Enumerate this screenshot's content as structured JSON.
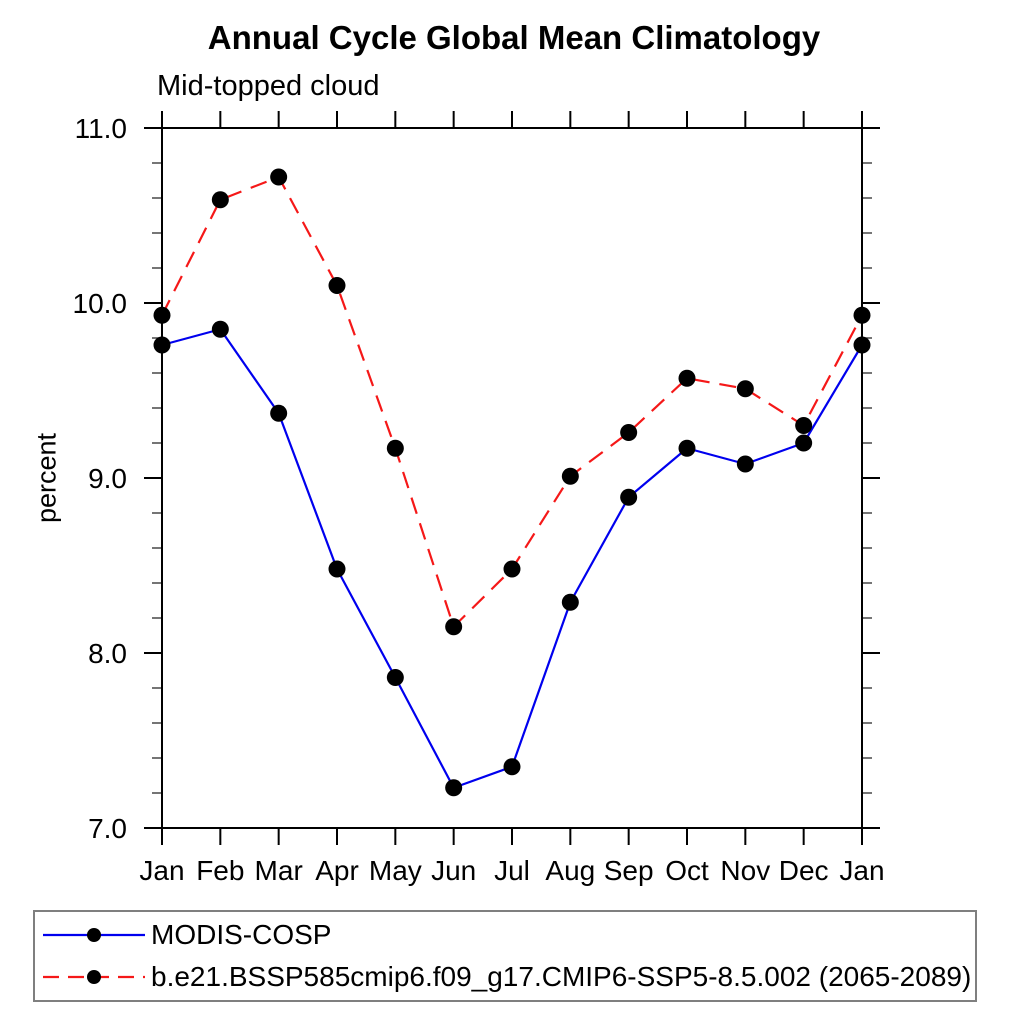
{
  "chart_data": {
    "type": "line",
    "title": "Annual Cycle Global Mean Climatology",
    "subtitle": "Mid-topped cloud",
    "xlabel": "",
    "ylabel": "percent",
    "categories": [
      "Jan",
      "Feb",
      "Mar",
      "Apr",
      "May",
      "Jun",
      "Jul",
      "Aug",
      "Sep",
      "Oct",
      "Nov",
      "Dec",
      "Jan"
    ],
    "ylim": [
      7.0,
      11.0
    ],
    "ytick_major_labels": [
      "7.0",
      "8.0",
      "9.0",
      "10.0",
      "11.0"
    ],
    "ytick_major_values": [
      7.0,
      8.0,
      9.0,
      10.0,
      11.0
    ],
    "ytick_minor_step": 0.2,
    "grid": false,
    "legend_position": "bottom-left",
    "marker_color": "#000000",
    "axis_color": "#000000",
    "series": [
      {
        "name": "MODIS-COSP",
        "color": "#0000ee",
        "line_style": "solid",
        "values": [
          9.76,
          9.85,
          9.37,
          8.48,
          7.86,
          7.23,
          7.35,
          8.29,
          8.89,
          9.17,
          9.08,
          9.2,
          9.76
        ]
      },
      {
        "name": "b.e21.BSSP585cmip6.f09_g17.CMIP6-SSP5-8.5.002 (2065-2089)",
        "color": "#f51818",
        "line_style": "dashed",
        "values": [
          9.93,
          10.59,
          10.72,
          10.1,
          9.17,
          8.15,
          8.48,
          9.01,
          9.26,
          9.57,
          9.51,
          9.3,
          9.93
        ]
      }
    ]
  }
}
